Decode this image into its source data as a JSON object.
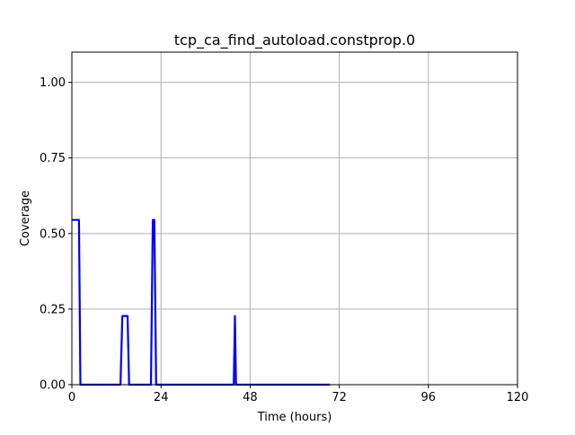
{
  "chart_data": {
    "type": "line",
    "title": "tcp_ca_find_autoload.constprop.0",
    "xlabel": "Time (hours)",
    "ylabel": "Coverage",
    "xlim": [
      0,
      120
    ],
    "ylim": [
      0,
      1.1
    ],
    "xticks": [
      0,
      24,
      48,
      72,
      96,
      120
    ],
    "xtick_labels": [
      "0",
      "24",
      "48",
      "72",
      "96",
      "120"
    ],
    "yticks": [
      0.0,
      0.25,
      0.5,
      0.75,
      1.0
    ],
    "ytick_labels": [
      "0.00",
      "0.25",
      "0.50",
      "0.75",
      "1.00"
    ],
    "grid": true,
    "legend": false,
    "colors": {
      "series": "#0000ff",
      "grid": "#b0b0b0",
      "axes": "#000000"
    },
    "series": [
      {
        "x": [
          0,
          1.9,
          2.3,
          13.1,
          13.6,
          15.0,
          15.4,
          21.3,
          21.8,
          22.2,
          22.7,
          43.6,
          43.9,
          44.2,
          69.5
        ],
        "y": [
          0.545,
          0.545,
          0.0,
          0.0,
          0.227,
          0.227,
          0.0,
          0.0,
          0.545,
          0.545,
          0.0,
          0.0,
          0.227,
          0.0,
          0.0
        ]
      }
    ]
  }
}
